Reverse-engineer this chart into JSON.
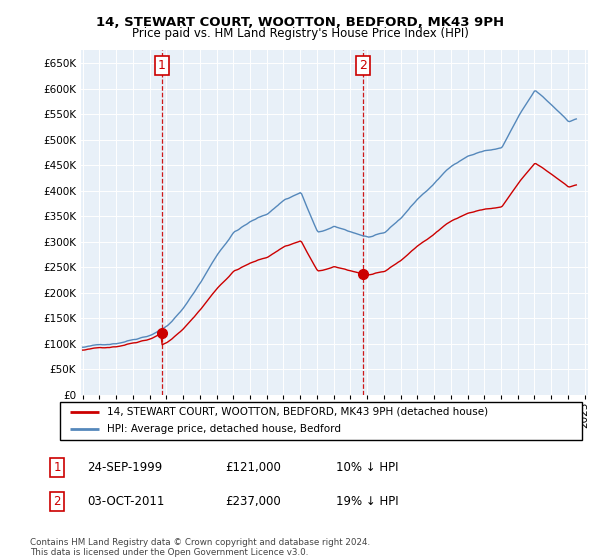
{
  "title": "14, STEWART COURT, WOOTTON, BEDFORD, MK43 9PH",
  "subtitle": "Price paid vs. HM Land Registry's House Price Index (HPI)",
  "legend_label_red": "14, STEWART COURT, WOOTTON, BEDFORD, MK43 9PH (detached house)",
  "legend_label_blue": "HPI: Average price, detached house, Bedford",
  "transaction1_date": "24-SEP-1999",
  "transaction1_price": "£121,000",
  "transaction1_hpi": "10% ↓ HPI",
  "transaction2_date": "03-OCT-2011",
  "transaction2_price": "£237,000",
  "transaction2_hpi": "19% ↓ HPI",
  "footnote": "Contains HM Land Registry data © Crown copyright and database right 2024.\nThis data is licensed under the Open Government Licence v3.0.",
  "ylim": [
    0,
    675000
  ],
  "yticks": [
    0,
    50000,
    100000,
    150000,
    200000,
    250000,
    300000,
    350000,
    400000,
    450000,
    500000,
    550000,
    600000,
    650000
  ],
  "color_red": "#cc0000",
  "color_blue": "#5588bb",
  "color_grid": "#cccccc",
  "p1_year": 1999.73,
  "p1_val": 121000,
  "p2_year": 2011.75,
  "p2_val": 237000,
  "xmin": 1994.9,
  "xmax": 2025.2,
  "xticks": [
    1995,
    1996,
    1997,
    1998,
    1999,
    2000,
    2001,
    2002,
    2003,
    2004,
    2005,
    2006,
    2007,
    2008,
    2009,
    2010,
    2011,
    2012,
    2013,
    2014,
    2015,
    2016,
    2017,
    2018,
    2019,
    2020,
    2021,
    2022,
    2023,
    2024,
    2025
  ]
}
